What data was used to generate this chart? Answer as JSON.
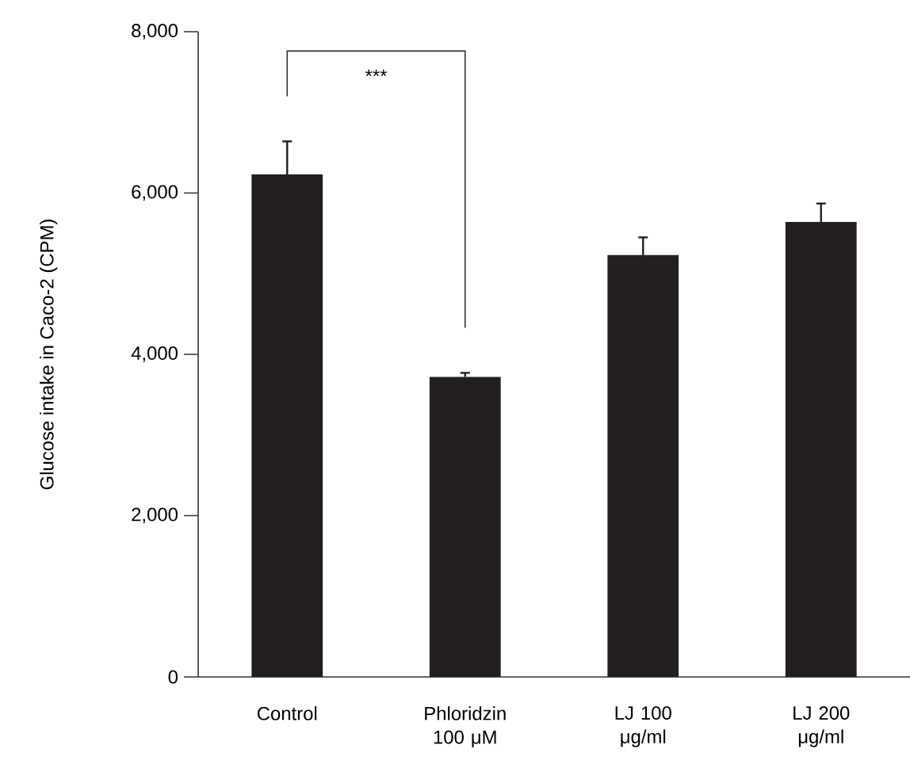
{
  "chart_data": {
    "type": "bar",
    "ylabel": "Glucose intake in Caco-2 (CPM)",
    "categories": [
      "Control",
      "Phloridzin 100 μM",
      "LJ 100 μg/ml",
      "LJ 200 μg/ml"
    ],
    "values": [
      6230,
      3720,
      5230,
      5640
    ],
    "errors": [
      410,
      50,
      220,
      230
    ],
    "color": "#231f20",
    "ylim": [
      0,
      8000
    ],
    "yticks": [
      {
        "value": 0,
        "label": "0"
      },
      {
        "value": 2000,
        "label": "2,000"
      },
      {
        "value": 4000,
        "label": "4,000"
      },
      {
        "value": 6000,
        "label": "6,000"
      },
      {
        "value": 8000,
        "label": "8,000"
      }
    ],
    "annotations": [
      "***"
    ],
    "grid": false
  }
}
